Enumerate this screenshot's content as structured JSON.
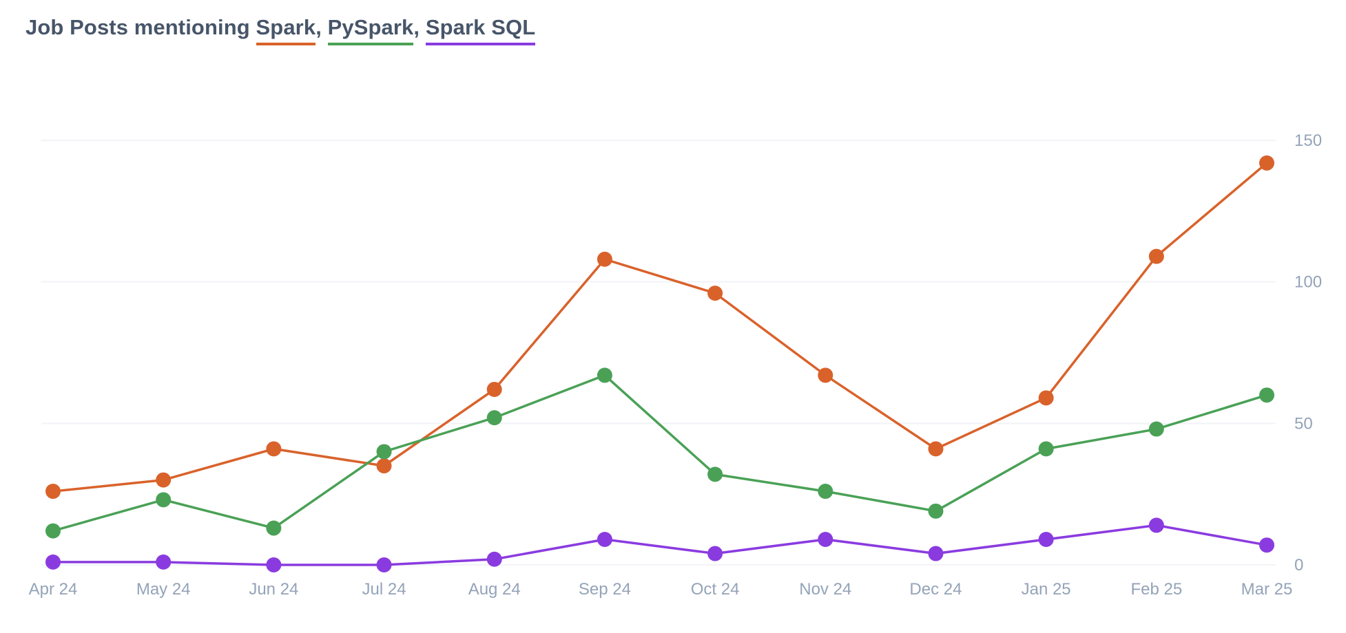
{
  "chart_data": {
    "type": "line",
    "title_prefix": "Job Posts mentioning",
    "title_separator": ",",
    "xlabel": "",
    "ylabel": "",
    "categories": [
      "Apr 24",
      "May 24",
      "Jun 24",
      "Jul 24",
      "Aug 24",
      "Sep 24",
      "Oct 24",
      "Nov 24",
      "Dec 24",
      "Jan 25",
      "Feb 25",
      "Mar 25"
    ],
    "ylim": [
      0,
      150
    ],
    "yticks": [
      0,
      50,
      100,
      150
    ],
    "ytick_labels": [
      "0",
      "50",
      "100",
      "150"
    ],
    "y_axis_side": "right",
    "grid": true,
    "legend_placement": "title",
    "series": [
      {
        "name": "Spark",
        "color": "#d9622b",
        "values": [
          26,
          30,
          41,
          35,
          62,
          108,
          96,
          67,
          41,
          59,
          109,
          142
        ]
      },
      {
        "name": "PySpark",
        "color": "#4aa156",
        "values": [
          12,
          23,
          13,
          40,
          52,
          67,
          32,
          26,
          19,
          41,
          48,
          60
        ]
      },
      {
        "name": "Spark SQL",
        "color": "#8a3be0",
        "values": [
          1,
          1,
          0,
          0,
          2,
          9,
          4,
          9,
          4,
          9,
          14,
          7
        ]
      }
    ]
  }
}
